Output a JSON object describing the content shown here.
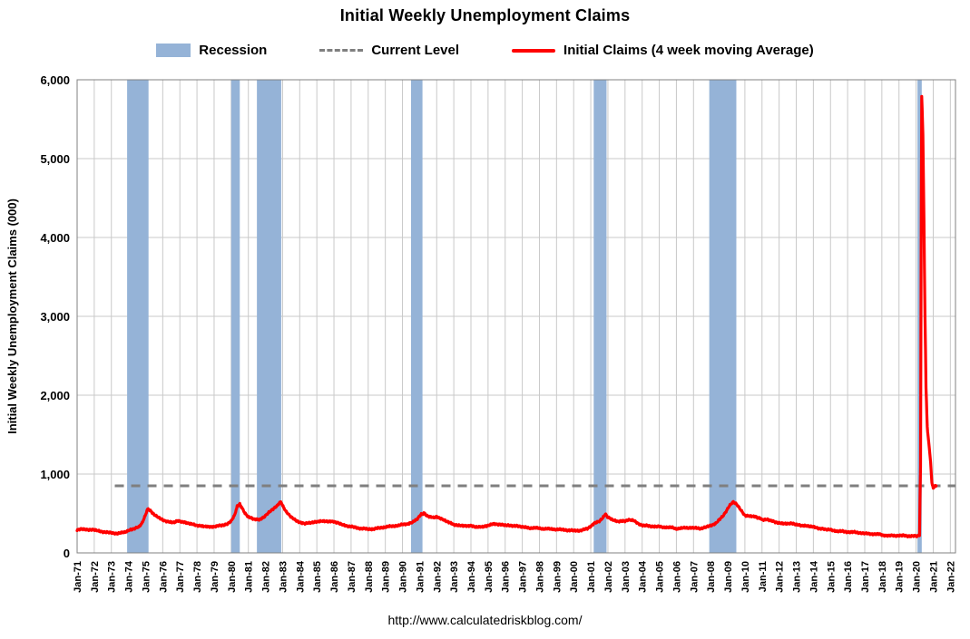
{
  "title": "Initial Weekly Unemployment Claims",
  "footer": "http://www.calculatedriskblog.com/",
  "legend": [
    {
      "label": "Recession",
      "type": "band"
    },
    {
      "label": "Current Level",
      "type": "dashed-line"
    },
    {
      "label": "Initial Claims (4 week moving Average)",
      "type": "line"
    }
  ],
  "colors": {
    "recession_band": "#95B3D7",
    "current_level_line": "#7F7F7F",
    "claims_line": "#FF0000",
    "gridline": "#C9C9C9",
    "plot_border": "#808080",
    "text": "#000000"
  },
  "chart_data": {
    "type": "line",
    "title": "Initial Weekly Unemployment Claims",
    "xlabel": "",
    "ylabel": "Initial Weekly Unemployment Claims (000)",
    "ylim": [
      0,
      6000
    ],
    "xlim": [
      1971,
      2022.3
    ],
    "grid": true,
    "legend_position": "top",
    "y_ticks": [
      0,
      1000,
      2000,
      3000,
      4000,
      5000,
      6000
    ],
    "y_tick_labels": [
      "0",
      "1,000",
      "2,000",
      "3,000",
      "4,000",
      "5,000",
      "6,000"
    ],
    "x_tick_start_year": 1971,
    "x_tick_labels": [
      "Jan-71",
      "Jan-72",
      "Jan-73",
      "Jan-74",
      "Jan-75",
      "Jan-76",
      "Jan-77",
      "Jan-78",
      "Jan-79",
      "Jan-80",
      "Jan-81",
      "Jan-82",
      "Jan-83",
      "Jan-84",
      "Jan-85",
      "Jan-86",
      "Jan-87",
      "Jan-88",
      "Jan-89",
      "Jan-90",
      "Jan-91",
      "Jan-92",
      "Jan-93",
      "Jan-94",
      "Jan-95",
      "Jan-96",
      "Jan-97",
      "Jan-98",
      "Jan-99",
      "Jan-00",
      "Jan-01",
      "Jan-02",
      "Jan-03",
      "Jan-04",
      "Jan-05",
      "Jan-06",
      "Jan-07",
      "Jan-08",
      "Jan-09",
      "Jan-10",
      "Jan-11",
      "Jan-12",
      "Jan-13",
      "Jan-14",
      "Jan-15",
      "Jan-16",
      "Jan-17",
      "Jan-18",
      "Jan-19",
      "Jan-20",
      "Jan-21",
      "Jan-22"
    ],
    "current_level": 850,
    "current_level_span": [
      1973.2,
      2022.3
    ],
    "recessions": [
      [
        1973.92,
        1975.17
      ],
      [
        1980.0,
        1980.5
      ],
      [
        1981.5,
        1982.92
      ],
      [
        1990.5,
        1991.17
      ],
      [
        2001.17,
        2001.92
      ],
      [
        2007.92,
        2009.5
      ],
      [
        2020.08,
        2020.33
      ]
    ],
    "series": [
      {
        "name": "Initial Claims (4 week moving Average)",
        "points": [
          [
            1971.0,
            295
          ],
          [
            1971.2,
            305
          ],
          [
            1971.4,
            298
          ],
          [
            1971.6,
            290
          ],
          [
            1971.8,
            300
          ],
          [
            1972.0,
            292
          ],
          [
            1972.3,
            278
          ],
          [
            1972.6,
            265
          ],
          [
            1973.0,
            252
          ],
          [
            1973.4,
            246
          ],
          [
            1973.8,
            262
          ],
          [
            1974.0,
            288
          ],
          [
            1974.3,
            310
          ],
          [
            1974.6,
            332
          ],
          [
            1974.8,
            382
          ],
          [
            1975.0,
            480
          ],
          [
            1975.1,
            555
          ],
          [
            1975.25,
            540
          ],
          [
            1975.4,
            508
          ],
          [
            1975.6,
            468
          ],
          [
            1975.8,
            440
          ],
          [
            1976.0,
            420
          ],
          [
            1976.3,
            396
          ],
          [
            1976.6,
            386
          ],
          [
            1976.9,
            404
          ],
          [
            1977.1,
            396
          ],
          [
            1977.4,
            382
          ],
          [
            1977.7,
            366
          ],
          [
            1978.0,
            346
          ],
          [
            1978.3,
            336
          ],
          [
            1978.6,
            330
          ],
          [
            1979.0,
            336
          ],
          [
            1979.4,
            346
          ],
          [
            1979.8,
            372
          ],
          [
            1980.0,
            400
          ],
          [
            1980.2,
            480
          ],
          [
            1980.35,
            590
          ],
          [
            1980.5,
            618
          ],
          [
            1980.65,
            560
          ],
          [
            1980.8,
            500
          ],
          [
            1981.0,
            458
          ],
          [
            1981.3,
            432
          ],
          [
            1981.6,
            420
          ],
          [
            1981.9,
            450
          ],
          [
            1982.2,
            510
          ],
          [
            1982.5,
            562
          ],
          [
            1982.75,
            618
          ],
          [
            1982.9,
            648
          ],
          [
            1983.0,
            598
          ],
          [
            1983.2,
            528
          ],
          [
            1983.5,
            458
          ],
          [
            1983.8,
            410
          ],
          [
            1984.0,
            390
          ],
          [
            1984.3,
            376
          ],
          [
            1984.6,
            386
          ],
          [
            1985.0,
            392
          ],
          [
            1985.3,
            400
          ],
          [
            1985.6,
            396
          ],
          [
            1986.0,
            400
          ],
          [
            1986.2,
            386
          ],
          [
            1986.5,
            360
          ],
          [
            1986.8,
            344
          ],
          [
            1987.0,
            334
          ],
          [
            1987.4,
            316
          ],
          [
            1987.8,
            306
          ],
          [
            1988.0,
            300
          ],
          [
            1988.4,
            306
          ],
          [
            1988.8,
            320
          ],
          [
            1989.0,
            330
          ],
          [
            1989.4,
            336
          ],
          [
            1989.8,
            350
          ],
          [
            1990.0,
            356
          ],
          [
            1990.3,
            362
          ],
          [
            1990.6,
            386
          ],
          [
            1990.9,
            440
          ],
          [
            1991.1,
            488
          ],
          [
            1991.25,
            500
          ],
          [
            1991.5,
            466
          ],
          [
            1991.8,
            452
          ],
          [
            1992.0,
            456
          ],
          [
            1992.3,
            430
          ],
          [
            1992.6,
            400
          ],
          [
            1993.0,
            356
          ],
          [
            1993.3,
            346
          ],
          [
            1993.6,
            340
          ],
          [
            1994.0,
            350
          ],
          [
            1994.3,
            330
          ],
          [
            1994.7,
            326
          ],
          [
            1995.0,
            344
          ],
          [
            1995.3,
            364
          ],
          [
            1995.6,
            358
          ],
          [
            1996.0,
            354
          ],
          [
            1996.3,
            350
          ],
          [
            1996.7,
            340
          ],
          [
            1997.0,
            326
          ],
          [
            1997.4,
            316
          ],
          [
            1997.8,
            314
          ],
          [
            1998.0,
            310
          ],
          [
            1998.4,
            304
          ],
          [
            1998.8,
            300
          ],
          [
            1999.0,
            298
          ],
          [
            1999.4,
            292
          ],
          [
            1999.8,
            286
          ],
          [
            2000.0,
            280
          ],
          [
            2000.4,
            286
          ],
          [
            2000.8,
            306
          ],
          [
            2001.0,
            340
          ],
          [
            2001.2,
            380
          ],
          [
            2001.5,
            402
          ],
          [
            2001.7,
            440
          ],
          [
            2001.85,
            490
          ],
          [
            2002.0,
            452
          ],
          [
            2002.3,
            416
          ],
          [
            2002.6,
            400
          ],
          [
            2003.0,
            404
          ],
          [
            2003.2,
            424
          ],
          [
            2003.5,
            416
          ],
          [
            2003.8,
            370
          ],
          [
            2004.0,
            350
          ],
          [
            2004.4,
            340
          ],
          [
            2004.8,
            334
          ],
          [
            2005.0,
            330
          ],
          [
            2005.4,
            324
          ],
          [
            2005.8,
            318
          ],
          [
            2006.0,
            306
          ],
          [
            2006.4,
            314
          ],
          [
            2006.8,
            320
          ],
          [
            2007.0,
            314
          ],
          [
            2007.4,
            310
          ],
          [
            2007.8,
            330
          ],
          [
            2008.0,
            346
          ],
          [
            2008.3,
            372
          ],
          [
            2008.6,
            440
          ],
          [
            2008.9,
            520
          ],
          [
            2009.1,
            600
          ],
          [
            2009.3,
            650
          ],
          [
            2009.5,
            618
          ],
          [
            2009.7,
            560
          ],
          [
            2010.0,
            470
          ],
          [
            2010.3,
            462
          ],
          [
            2010.6,
            458
          ],
          [
            2010.9,
            438
          ],
          [
            2011.0,
            422
          ],
          [
            2011.3,
            426
          ],
          [
            2011.6,
            408
          ],
          [
            2012.0,
            376
          ],
          [
            2012.3,
            370
          ],
          [
            2012.6,
            374
          ],
          [
            2013.0,
            358
          ],
          [
            2013.3,
            346
          ],
          [
            2013.6,
            340
          ],
          [
            2014.0,
            334
          ],
          [
            2014.3,
            314
          ],
          [
            2014.7,
            296
          ],
          [
            2015.0,
            290
          ],
          [
            2015.4,
            276
          ],
          [
            2015.8,
            270
          ],
          [
            2016.0,
            266
          ],
          [
            2016.4,
            262
          ],
          [
            2016.8,
            254
          ],
          [
            2017.0,
            246
          ],
          [
            2017.4,
            242
          ],
          [
            2017.8,
            238
          ],
          [
            2018.0,
            230
          ],
          [
            2018.4,
            218
          ],
          [
            2018.8,
            221
          ],
          [
            2019.0,
            222
          ],
          [
            2019.4,
            217
          ],
          [
            2019.8,
            214
          ],
          [
            2020.0,
            212
          ],
          [
            2020.1,
            214
          ],
          [
            2020.2,
            230
          ],
          [
            2020.26,
            1100
          ],
          [
            2020.3,
            4400
          ],
          [
            2020.33,
            5790
          ],
          [
            2020.4,
            5300
          ],
          [
            2020.46,
            4200
          ],
          [
            2020.52,
            3000
          ],
          [
            2020.58,
            2100
          ],
          [
            2020.65,
            1600
          ],
          [
            2020.75,
            1370
          ],
          [
            2020.85,
            1150
          ],
          [
            2020.92,
            880
          ],
          [
            2021.0,
            828
          ],
          [
            2021.08,
            845
          ],
          [
            2021.17,
            852
          ]
        ]
      }
    ]
  }
}
